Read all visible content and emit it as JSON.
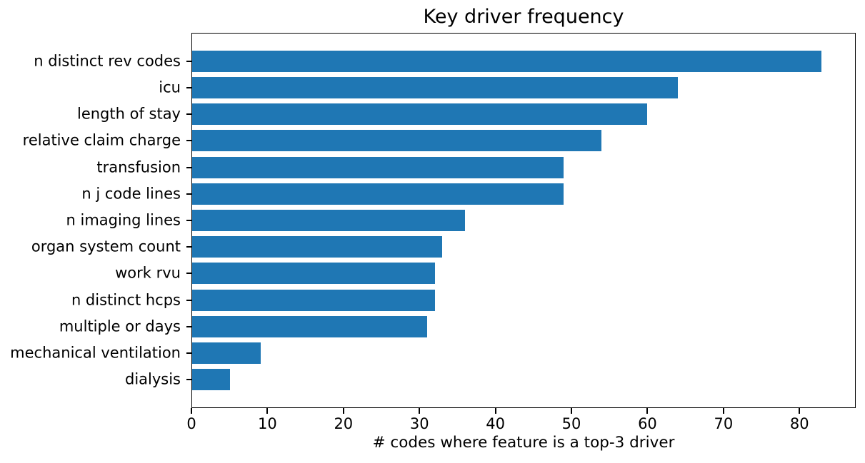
{
  "figure": {
    "background": "#ffffff"
  },
  "chart_data": {
    "type": "bar",
    "orientation": "horizontal",
    "title": "Key driver frequency",
    "xlabel": "# codes where feature is a top-3 driver",
    "ylabel": "",
    "categories": [
      "n distinct rev codes",
      "icu",
      "length of stay",
      "relative claim charge",
      "transfusion",
      "n j code lines",
      "n imaging lines",
      "organ system count",
      "work rvu",
      "n distinct hcps",
      "multiple or days",
      "mechanical ventilation",
      "dialysis"
    ],
    "values": [
      83,
      64,
      60,
      54,
      49,
      49,
      36,
      33,
      32,
      32,
      31,
      9,
      5
    ],
    "xticks": [
      0,
      10,
      20,
      30,
      40,
      50,
      60,
      70,
      80
    ],
    "xlim": [
      0,
      87.4
    ],
    "bar_color": "#1f77b4",
    "axis_color": "#000000",
    "text_color": "#000000",
    "grid": false,
    "legend_position": "none"
  }
}
